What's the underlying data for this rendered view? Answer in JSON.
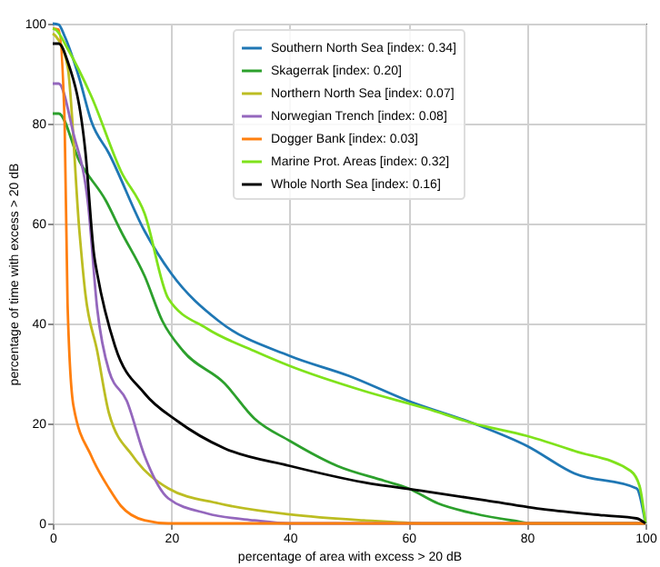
{
  "chart_data": {
    "type": "line",
    "xlabel": "percentage of area with excess > 20 dB",
    "ylabel": "percentage of time with excess > 20 dB",
    "xlim": [
      0,
      100
    ],
    "ylim": [
      0,
      100
    ],
    "xticks": [
      0,
      20,
      40,
      60,
      80,
      100
    ],
    "yticks": [
      0,
      20,
      40,
      60,
      80,
      100
    ],
    "grid": true,
    "legend": "top",
    "series": [
      {
        "name": "Southern North Sea [index: 0.34]",
        "color": "#1f77b4",
        "x": [
          0,
          1,
          2,
          4.5,
          6.5,
          9.5,
          15.5,
          20,
          28,
          40,
          50,
          60,
          71,
          80,
          88,
          98.5,
          100
        ],
        "values": [
          100,
          99.8,
          97.5,
          89,
          80.5,
          74,
          58.5,
          50,
          40.5,
          33.5,
          29.5,
          24.5,
          20,
          15.5,
          10,
          7,
          0
        ]
      },
      {
        "name": "Skagerrak [index: 0.20]",
        "color": "#2ca02c",
        "x": [
          0,
          1,
          4.5,
          9,
          11.5,
          15.5,
          18.5,
          22,
          29,
          34,
          40,
          48,
          56,
          60,
          65,
          71,
          78,
          81,
          100
        ],
        "values": [
          82,
          82,
          72.5,
          64.5,
          58.5,
          49.5,
          40.5,
          34.5,
          28,
          21,
          16.5,
          11.5,
          8.5,
          7,
          4,
          2,
          0.5,
          0,
          0
        ]
      },
      {
        "name": "Northern North Sea [index: 0.07]",
        "color": "#bcbd22",
        "x": [
          0,
          0.5,
          2.5,
          4.5,
          5.5,
          7.5,
          9.5,
          13.5,
          19.5,
          28,
          40,
          52.5,
          63,
          100
        ],
        "values": [
          98,
          97.5,
          91.5,
          58.5,
          46,
          34.5,
          22,
          13.5,
          7,
          4,
          1.8,
          0.6,
          0,
          0
        ]
      },
      {
        "name": "Norwegian Trench [index: 0.08]",
        "color": "#9467bd",
        "x": [
          0,
          1,
          3.5,
          6,
          7.5,
          9.5,
          12.5,
          15.5,
          19.5,
          26,
          34,
          40,
          100
        ],
        "values": [
          88,
          88,
          78,
          63.5,
          43,
          30.5,
          24.5,
          13.5,
          5,
          2,
          0.6,
          0,
          0
        ]
      },
      {
        "name": "Dogger Bank [index: 0.03]",
        "color": "#ff7f0e",
        "x": [
          0,
          1,
          2,
          2.5,
          3.5,
          6.5,
          9.5,
          11.5,
          15.5,
          19.5,
          100
        ],
        "values": [
          99,
          98.8,
          80.5,
          44,
          23.5,
          13.5,
          7,
          3.5,
          0.6,
          0,
          0
        ]
      },
      {
        "name": "Marine Prot. Areas [index: 0.32]",
        "color": "#7fe21b",
        "x": [
          0,
          0.5,
          2.5,
          6.5,
          11.5,
          15.5,
          19.5,
          26,
          34,
          40,
          52.5,
          63,
          71,
          80,
          88,
          97.5,
          99,
          100
        ],
        "values": [
          99,
          98.8,
          95,
          85.5,
          70.5,
          62,
          45,
          39,
          34.5,
          31.5,
          26.5,
          23,
          20,
          17.5,
          14.5,
          10.5,
          7.5,
          0
        ]
      },
      {
        "name": "Whole North Sea [index: 0.16]",
        "color": "#000000",
        "x": [
          0,
          1,
          2.5,
          5.5,
          7,
          7.5,
          10.5,
          15.5,
          21,
          29,
          40,
          52.5,
          63,
          73,
          83,
          93,
          98.5,
          100
        ],
        "values": [
          96,
          96,
          92.5,
          74.5,
          53.5,
          50,
          35.5,
          26,
          20.5,
          15,
          11.5,
          8.2,
          6.4,
          4.6,
          2.8,
          1.6,
          1,
          0
        ]
      }
    ]
  }
}
